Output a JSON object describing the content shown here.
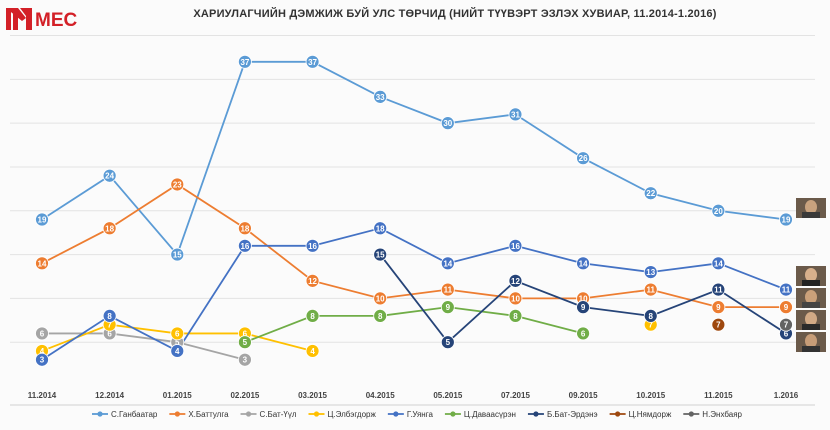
{
  "logo": {
    "text": "MEC",
    "color": "#d32027"
  },
  "chart_data": {
    "type": "line",
    "title": "ХАРИУЛАГЧИЙН ДЭМЖИЖ БУЙ УЛС ТӨРЧИД (НИЙТ ТҮҮВЭРТ ЭЗЛЭХ ХУВИАР, 11.2014-1.2016)",
    "categories": [
      "11.2014",
      "12.2014",
      "01.2015",
      "02.2015",
      "03.2015",
      "04.2015",
      "05.2015",
      "07.2015",
      "09.2015",
      "10.2015",
      "11.2015",
      "1.2016"
    ],
    "ylim": [
      0,
      42
    ],
    "grid": true,
    "legend_position": "bottom",
    "series": [
      {
        "name": "С.Ганбаатар",
        "color": "#5b9bd5",
        "values": [
          19,
          24,
          15,
          37,
          37,
          33,
          30,
          31,
          26,
          22,
          20,
          19
        ]
      },
      {
        "name": "Х.Баттулга",
        "color": "#ed7d31",
        "values": [
          14,
          18,
          23,
          18,
          12,
          10,
          11,
          10,
          10,
          11,
          9,
          9
        ]
      },
      {
        "name": "С.Бат-Үүл",
        "color": "#a5a5a5",
        "values": [
          6,
          6,
          5,
          3,
          null,
          null,
          null,
          null,
          null,
          null,
          null,
          null
        ]
      },
      {
        "name": "Ц.Элбэгдорж",
        "color": "#ffc000",
        "values": [
          4,
          7,
          6,
          6,
          4,
          null,
          null,
          null,
          null,
          7,
          null,
          null
        ]
      },
      {
        "name": "Г.Уянга",
        "color": "#4472c4",
        "values": [
          3,
          8,
          4,
          16,
          16,
          18,
          14,
          16,
          14,
          13,
          14,
          11
        ]
      },
      {
        "name": "Ц.Даваасүрэн",
        "color": "#70ad47",
        "values": [
          null,
          null,
          null,
          5,
          8,
          8,
          9,
          8,
          6,
          null,
          null,
          null
        ]
      },
      {
        "name": "Б.Бат-Эрдэнэ",
        "color": "#264478",
        "values": [
          null,
          null,
          null,
          null,
          null,
          15,
          5,
          12,
          9,
          8,
          11,
          6
        ]
      },
      {
        "name": "Ц.Нямдорж",
        "color": "#9e480e",
        "values": [
          null,
          null,
          null,
          null,
          null,
          null,
          null,
          null,
          null,
          null,
          7,
          null
        ]
      },
      {
        "name": "Н.Энхбаяр",
        "color": "#636363",
        "values": [
          null,
          null,
          null,
          null,
          null,
          null,
          null,
          null,
          null,
          null,
          null,
          7
        ]
      }
    ]
  }
}
